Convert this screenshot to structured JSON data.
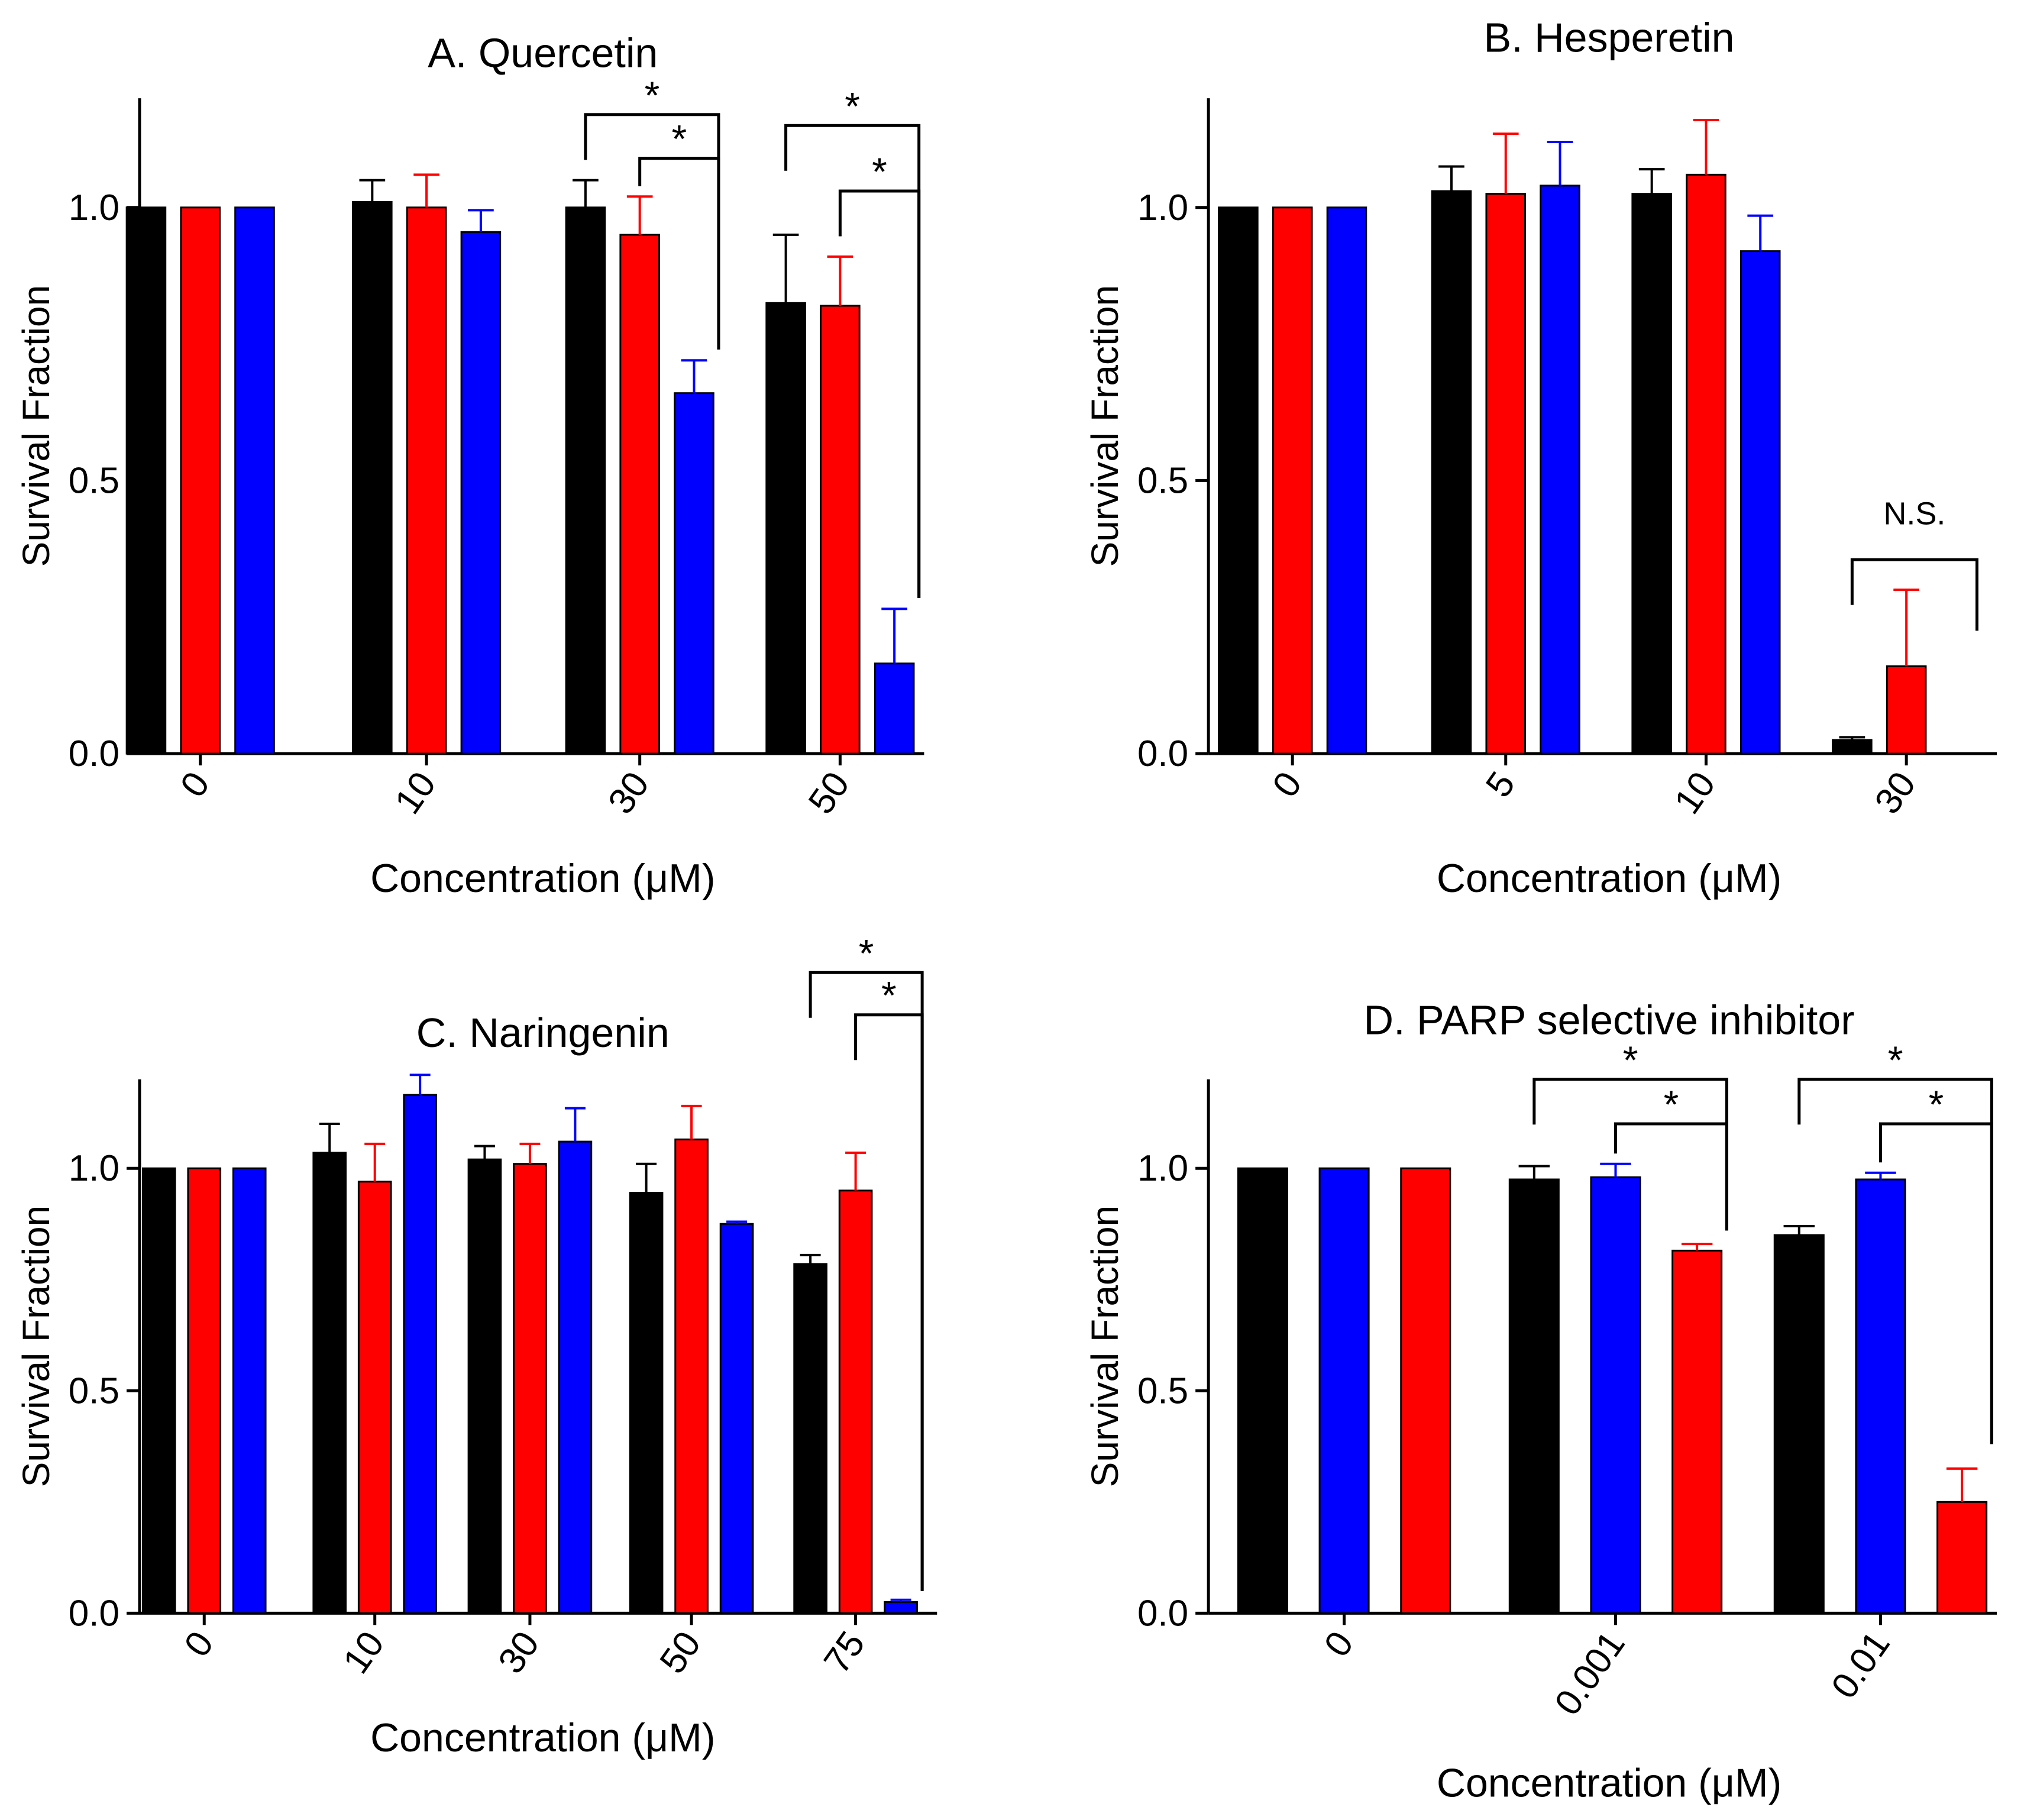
{
  "colors": {
    "black": "#000000",
    "red": "#ff0000",
    "blue": "#0000ff"
  },
  "chart_data": [
    {
      "type": "bar",
      "title": "A. Quercetin",
      "xlabel": "Concentration (μM)",
      "ylabel": "Survival Fraction",
      "ylim": [
        0,
        1.2
      ],
      "yticks": [
        "0.0",
        "0.5",
        "1.0"
      ],
      "categories": [
        "0",
        "10",
        "30",
        "50"
      ],
      "series": [
        {
          "name": "black",
          "color": "#000000",
          "values": [
            1.0,
            1.01,
            1.0,
            0.825
          ],
          "errors": [
            0,
            0.04,
            0.05,
            0.125
          ]
        },
        {
          "name": "red",
          "color": "#ff0000",
          "values": [
            1.0,
            1.0,
            0.95,
            0.82
          ],
          "errors": [
            0,
            0.06,
            0.07,
            0.09
          ]
        },
        {
          "name": "blue",
          "color": "#0000ff",
          "values": [
            1.0,
            0.955,
            0.66,
            0.165
          ],
          "errors": [
            0,
            0.04,
            0.06,
            0.1
          ]
        }
      ],
      "annotations": [
        {
          "cat": 2,
          "from": 0,
          "to": 2,
          "level": 1.17,
          "drop_to": 0.0,
          "text": "*"
        },
        {
          "cat": 2,
          "from": 1,
          "to": 2,
          "level": 1.09,
          "drop_to": 0.0,
          "text": "*"
        },
        {
          "cat": 3,
          "from": 0,
          "to": 2,
          "level": 1.15,
          "drop_to": 0.0,
          "text": "*"
        },
        {
          "cat": 3,
          "from": 1,
          "to": 2,
          "level": 1.03,
          "drop_to": 0.0,
          "text": "*"
        }
      ]
    },
    {
      "type": "bar",
      "title": "B. Hesperetin",
      "xlabel": "Concentration (μM)",
      "ylabel": "Survival Fraction",
      "ylim": [
        0,
        1.2
      ],
      "yticks": [
        "0.0",
        "0.5",
        "1.0"
      ],
      "categories": [
        "0",
        "5",
        "10",
        "30"
      ],
      "series": [
        {
          "name": "black",
          "color": "#000000",
          "values": [
            1.0,
            1.03,
            1.025,
            0.025
          ],
          "errors": [
            0,
            0.045,
            0.045,
            0.005
          ]
        },
        {
          "name": "red",
          "color": "#ff0000",
          "values": [
            1.0,
            1.025,
            1.06,
            0.16
          ],
          "errors": [
            0,
            0.11,
            0.1,
            0.14
          ]
        },
        {
          "name": "blue",
          "color": "#0000ff",
          "values": [
            1.0,
            1.04,
            0.92,
            null
          ],
          "errors": [
            0,
            0.08,
            0.065,
            0
          ]
        }
      ],
      "annotations": [
        {
          "cat": 3,
          "from": 0,
          "to": 2,
          "level": 0.355,
          "drop_to": 0.225,
          "text": "N.S."
        }
      ]
    },
    {
      "type": "bar",
      "title": "C. Naringenin",
      "xlabel": "Concentration (μM)",
      "ylabel": "Survival Fraction",
      "ylim": [
        0,
        1.2
      ],
      "yticks": [
        "0.0",
        "0.5",
        "1.0"
      ],
      "categories": [
        "0",
        "10",
        "30",
        "50",
        "75"
      ],
      "series": [
        {
          "name": "black",
          "color": "#000000",
          "values": [
            1.0,
            1.035,
            1.02,
            0.945,
            0.785
          ],
          "errors": [
            0,
            0.065,
            0.03,
            0.065,
            0.02
          ]
        },
        {
          "name": "red",
          "color": "#ff0000",
          "values": [
            1.0,
            0.97,
            1.01,
            1.065,
            0.95
          ],
          "errors": [
            0,
            0.085,
            0.045,
            0.075,
            0.085
          ]
        },
        {
          "name": "blue",
          "color": "#0000ff",
          "values": [
            1.0,
            1.165,
            1.06,
            0.875,
            0.025
          ],
          "errors": [
            0,
            0.045,
            0.075,
            0.005,
            0.005
          ]
        }
      ],
      "annotations": [
        {
          "cat": 4,
          "from": 0,
          "to": 2,
          "level": 1.44,
          "drop_to": 0.05,
          "text": "*"
        },
        {
          "cat": 4,
          "from": 1,
          "to": 2,
          "level": 1.345,
          "drop_to": 0.05,
          "text": "*"
        }
      ]
    },
    {
      "type": "bar",
      "title": "D. PARP selective inhibitor",
      "xlabel": "Concentration (μM)",
      "ylabel": "Survival Fraction",
      "ylim": [
        0,
        1.2
      ],
      "yticks": [
        "0.0",
        "0.5",
        "1.0"
      ],
      "categories": [
        "0",
        "0.001",
        "0.01"
      ],
      "series": [
        {
          "name": "black",
          "color": "#000000",
          "values": [
            1.0,
            0.975,
            0.85
          ],
          "errors": [
            0,
            0.03,
            0.02
          ]
        },
        {
          "name": "blue",
          "color": "#0000ff",
          "values": [
            1.0,
            0.98,
            0.975
          ],
          "errors": [
            0,
            0.03,
            0.015
          ]
        },
        {
          "name": "red",
          "color": "#ff0000",
          "values": [
            1.0,
            0.815,
            0.25
          ],
          "errors": [
            0,
            0.015,
            0.075
          ]
        }
      ],
      "annotations": [
        {
          "cat": 1,
          "from": 0,
          "to": 2,
          "level": 1.2,
          "drop_to": 0.86,
          "text": "*"
        },
        {
          "cat": 1,
          "from": 1,
          "to": 2,
          "level": 1.1,
          "drop_to": 0.86,
          "text": "*"
        },
        {
          "cat": 2,
          "from": 0,
          "to": 2,
          "level": 1.2,
          "drop_to": 0.38,
          "text": "*"
        },
        {
          "cat": 2,
          "from": 1,
          "to": 2,
          "level": 1.1,
          "drop_to": 0.38,
          "text": "*"
        }
      ]
    }
  ]
}
